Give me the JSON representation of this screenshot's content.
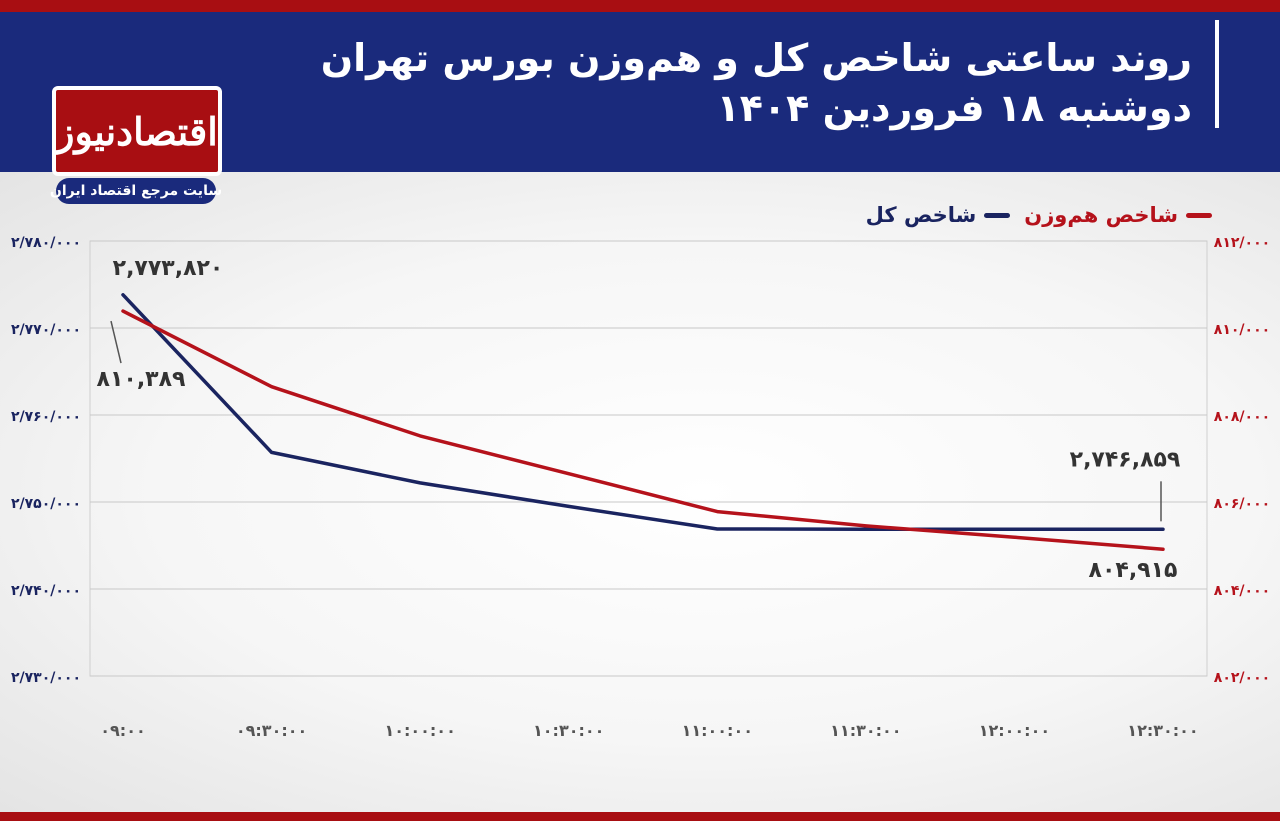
{
  "header": {
    "title": "روند ساعتی شاخص کل و هم‌وزن بورس تهران",
    "subtitle": "دوشنبه ۱۸ فروردین ۱۴۰۴",
    "logo_text": "اقتصادنیوز",
    "logo_tagline": "سایت مرجع اقتصاد ایران"
  },
  "colors": {
    "header_bg": "#1a2a7c",
    "accent_red": "#a80e12",
    "series_total": "#1a2460",
    "series_equal": "#b5121b"
  },
  "chart_data": {
    "type": "line",
    "x": [
      "۰۹:۰۰",
      "۰۹:۳۰:۰۰",
      "۱۰:۰۰:۰۰",
      "۱۰:۳۰:۰۰",
      "۱۱:۰۰:۰۰",
      "۱۱:۳۰:۰۰",
      "۱۲:۰۰:۰۰",
      "۱۲:۳۰:۰۰"
    ],
    "x_values_hours": [
      9.0,
      9.5,
      10.0,
      10.5,
      11.0,
      11.5,
      12.0,
      12.5
    ],
    "series": [
      {
        "name": "شاخص کل",
        "axis": "left",
        "color": "#1a2460",
        "x": [
          9.0,
          9.5,
          10.0,
          10.5,
          11.0,
          11.5,
          12.0,
          12.5
        ],
        "values": [
          2773820,
          2755700,
          2752200,
          2749500,
          2746900,
          2746870,
          2746860,
          2746859
        ]
      },
      {
        "name": "شاخص هم‌وزن",
        "axis": "right",
        "color": "#b5121b",
        "x": [
          9.0,
          9.5,
          10.0,
          10.5,
          11.0,
          11.5,
          12.0,
          12.5
        ],
        "values": [
          810389,
          808650,
          807520,
          806650,
          805780,
          805450,
          805190,
          804915
        ]
      }
    ],
    "y_left": {
      "ylim": [
        2730000,
        2780000
      ],
      "ticks": [
        2780000,
        2770000,
        2760000,
        2750000,
        2740000,
        2730000
      ],
      "tick_labels": [
        "۲/۷۸۰/۰۰۰",
        "۲/۷۷۰/۰۰۰",
        "۲/۷۶۰/۰۰۰",
        "۲/۷۵۰/۰۰۰",
        "۲/۷۴۰/۰۰۰",
        "۲/۷۳۰/۰۰۰"
      ]
    },
    "y_right": {
      "ylim": [
        802000,
        812000
      ],
      "ticks": [
        812000,
        810000,
        808000,
        806000,
        804000,
        802000
      ],
      "tick_labels": [
        "۸۱۲/۰۰۰",
        "۸۱۰/۰۰۰",
        "۸۰۸/۰۰۰",
        "۸۰۶/۰۰۰",
        "۸۰۴/۰۰۰",
        "۸۰۲/۰۰۰"
      ]
    },
    "annotations": [
      {
        "text": "۲,۷۷۳,۸۲۰",
        "series": 0,
        "point": 0
      },
      {
        "text": "۸۱۰,۳۸۹",
        "series": 1,
        "point": 0
      },
      {
        "text": "۲,۷۴۶,۸۵۹",
        "series": 0,
        "point": 7
      },
      {
        "text": "۸۰۴,۹۱۵",
        "series": 1,
        "point": 7
      }
    ],
    "grid": "horizontal",
    "legend_position": "top-right"
  }
}
